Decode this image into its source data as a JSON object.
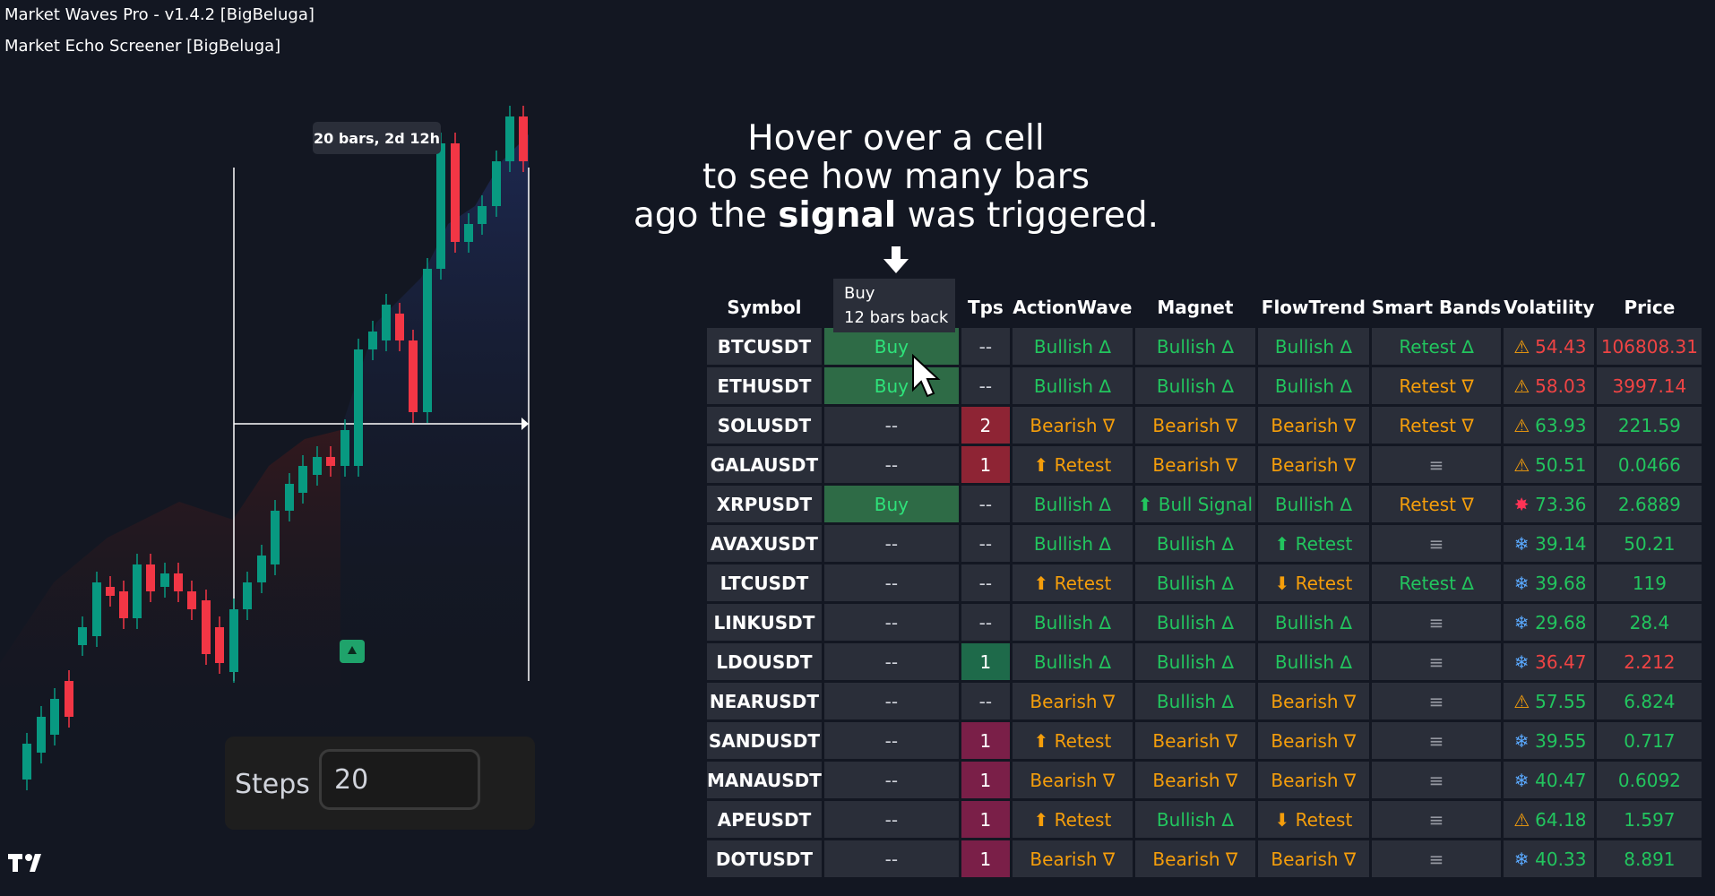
{
  "indicators": [
    "Market Waves Pro - v1.4.2 [BigBeluga]",
    "Market Echo Screener [BigBeluga]"
  ],
  "chart_tooltip": "20 bars, 2d 12h",
  "steps": {
    "label": "Steps",
    "value": "20"
  },
  "hint": {
    "line1": "Hover over a cell",
    "line2": "to see how many bars",
    "line3_pre": "ago the",
    "line3_bold": "signal",
    "line3_post": "was triggered."
  },
  "hover_tooltip": {
    "line1": "Buy",
    "line2": "12 bars back"
  },
  "colors": {
    "bull": "#22c55e",
    "bear": "#f59e0b",
    "buy_cell": "#2e6b46",
    "tps_red": "#8e2434",
    "tps_green": "#1e6a4a"
  },
  "table": {
    "headers": [
      "Symbol",
      "",
      "Tps",
      "ActionWave",
      "Magnet",
      "FlowTrend",
      "Smart Bands",
      "Volatility",
      "Price"
    ],
    "rows": [
      {
        "symbol": "BTCUSDT",
        "signal": "Buy",
        "tps": "--",
        "action": "Bullish ∆",
        "magnet": "Bullish ∆",
        "flow": "Bullish ∆",
        "bands": "Retest ∆",
        "vol_icon": "warning-icon",
        "vol": "54.43",
        "price": "106808.31"
      },
      {
        "symbol": "ETHUSDT",
        "signal": "Buy",
        "tps": "--",
        "action": "Bullish ∆",
        "magnet": "Bullish ∆",
        "flow": "Bullish ∆",
        "bands": "Retest ∇",
        "vol_icon": "warning-icon",
        "vol": "58.03",
        "price": "3997.14"
      },
      {
        "symbol": "SOLUSDT",
        "signal": "--",
        "tps": "2",
        "action": "Bearish ∇",
        "magnet": "Bearish ∇",
        "flow": "Bearish ∇",
        "bands": "Retest ∇",
        "vol_icon": "warning-icon",
        "vol": "63.93",
        "price": "221.59"
      },
      {
        "symbol": "GALAUSDT",
        "signal": "--",
        "tps": "1",
        "action": "⬆ Retest",
        "magnet": "Bearish ∇",
        "flow": "Bearish ∇",
        "bands": "≡",
        "vol_icon": "warning-icon",
        "vol": "50.51",
        "price": "0.0466"
      },
      {
        "symbol": "XRPUSDT",
        "signal": "Buy",
        "tps": "--",
        "action": "Bullish ∆",
        "magnet": "⬆ Bull Signal",
        "flow": "Bullish ∆",
        "bands": "Retest ∇",
        "vol_icon": "burst-icon",
        "vol": "73.36",
        "price": "2.6889"
      },
      {
        "symbol": "AVAXUSDT",
        "signal": "--",
        "tps": "--",
        "action": "Bullish ∆",
        "magnet": "Bullish ∆",
        "flow": "⬆ Retest",
        "bands": "≡",
        "vol_icon": "snowflake-icon",
        "vol": "39.14",
        "price": "50.21"
      },
      {
        "symbol": "LTCUSDT",
        "signal": "--",
        "tps": "--",
        "action": "⬆ Retest",
        "magnet": "Bullish ∆",
        "flow": "⬇ Retest",
        "bands": "Retest ∆",
        "vol_icon": "snowflake-icon",
        "vol": "39.68",
        "price": "119"
      },
      {
        "symbol": "LINKUSDT",
        "signal": "--",
        "tps": "--",
        "action": "Bullish ∆",
        "magnet": "Bullish ∆",
        "flow": "Bullish ∆",
        "bands": "≡",
        "vol_icon": "snowflake-icon",
        "vol": "29.68",
        "price": "28.4"
      },
      {
        "symbol": "LDOUSDT",
        "signal": "--",
        "tps": "1",
        "action": "Bullish ∆",
        "magnet": "Bullish ∆",
        "flow": "Bullish ∆",
        "bands": "≡",
        "vol_icon": "snowflake-icon",
        "vol": "36.47",
        "price": "2.212"
      },
      {
        "symbol": "NEARUSDT",
        "signal": "--",
        "tps": "--",
        "action": "Bearish ∇",
        "magnet": "Bullish ∆",
        "flow": "Bearish ∇",
        "bands": "≡",
        "vol_icon": "warning-icon",
        "vol": "57.55",
        "price": "6.824"
      },
      {
        "symbol": "SANDUSDT",
        "signal": "--",
        "tps": "1",
        "action": "⬆ Retest",
        "magnet": "Bearish ∇",
        "flow": "Bearish ∇",
        "bands": "≡",
        "vol_icon": "snowflake-icon",
        "vol": "39.55",
        "price": "0.717"
      },
      {
        "symbol": "MANAUSDT",
        "signal": "--",
        "tps": "1",
        "action": "Bearish ∇",
        "magnet": "Bearish ∇",
        "flow": "Bearish ∇",
        "bands": "≡",
        "vol_icon": "snowflake-icon",
        "vol": "40.47",
        "price": "0.6092"
      },
      {
        "symbol": "APEUSDT",
        "signal": "--",
        "tps": "1",
        "action": "⬆ Retest",
        "magnet": "Bullish ∆",
        "flow": "⬇ Retest",
        "bands": "≡",
        "vol_icon": "warning-icon",
        "vol": "64.18",
        "price": "1.597"
      },
      {
        "symbol": "DOTUSDT",
        "signal": "--",
        "tps": "1",
        "action": "Bearish ∇",
        "magnet": "Bearish ∇",
        "flow": "Bearish ∇",
        "bands": "≡",
        "vol_icon": "snowflake-icon",
        "vol": "40.33",
        "price": "8.891"
      }
    ]
  }
}
